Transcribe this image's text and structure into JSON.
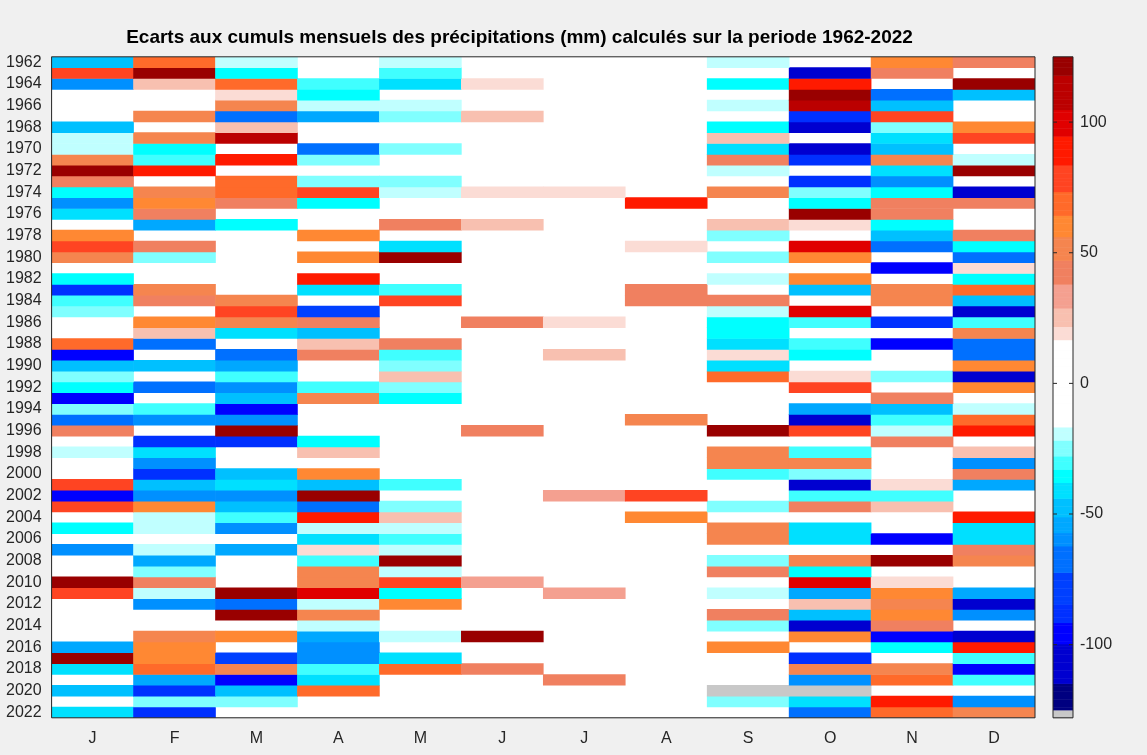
{
  "chart_data": {
    "type": "heatmap",
    "title": "Ecarts aux cumuls mensuels des précipitations (mm) calculés sur la periode 1962-2022",
    "categories": [
      "J",
      "F",
      "M",
      "A",
      "M",
      "J",
      "J",
      "A",
      "S",
      "O",
      "N",
      "D"
    ],
    "y_categories": [
      "1962",
      null,
      "1964",
      null,
      "1966",
      null,
      "1968",
      null,
      "1970",
      null,
      "1972",
      null,
      "1974",
      null,
      "1976",
      null,
      "1978",
      null,
      "1980",
      null,
      "1982",
      null,
      "1984",
      null,
      "1986",
      null,
      "1988",
      null,
      "1990",
      null,
      "1992",
      null,
      "1994",
      null,
      "1996",
      null,
      "1998",
      null,
      "2000",
      null,
      "2002",
      null,
      "2004",
      null,
      "2006",
      null,
      "2008",
      null,
      "2010",
      null,
      "2012",
      null,
      "2014",
      null,
      "2016",
      null,
      "2018",
      null,
      "2020",
      null,
      "2022"
    ],
    "clim": [
      -128,
      125
    ],
    "cticks": [
      -100,
      -50,
      0,
      50,
      100
    ],
    "cells": [
      [
        -48,
        65,
        -20,
        null,
        -20,
        null,
        null,
        null,
        -20,
        null,
        60,
        45
      ],
      [
        80,
        120,
        -37,
        null,
        -32,
        null,
        null,
        null,
        null,
        -105,
        45,
        null
      ],
      [
        -60,
        28,
        65,
        -32,
        -42,
        20,
        null,
        null,
        -37,
        95,
        null,
        120
      ],
      [
        null,
        null,
        20,
        -37,
        null,
        null,
        null,
        null,
        null,
        120,
        -68,
        -48
      ],
      [
        null,
        null,
        55,
        -20,
        -20,
        null,
        null,
        null,
        -20,
        110,
        -48,
        null
      ],
      [
        null,
        55,
        -68,
        -55,
        -27,
        28,
        null,
        null,
        null,
        -88,
        80,
        null
      ],
      [
        -48,
        null,
        28,
        null,
        null,
        null,
        null,
        null,
        -37,
        -108,
        -27,
        60
      ],
      [
        -20,
        55,
        110,
        null,
        null,
        null,
        null,
        null,
        28,
        null,
        -42,
        75
      ],
      [
        -20,
        -37,
        null,
        -68,
        -27,
        null,
        null,
        null,
        -42,
        -108,
        -48,
        null
      ],
      [
        55,
        -32,
        90,
        -27,
        null,
        null,
        null,
        null,
        45,
        -90,
        55,
        -20
      ],
      [
        120,
        95,
        null,
        null,
        null,
        null,
        null,
        null,
        -20,
        null,
        -42,
        120
      ],
      [
        45,
        null,
        65,
        -27,
        -27,
        null,
        null,
        null,
        null,
        -90,
        -60,
        null
      ],
      [
        -37,
        55,
        65,
        80,
        -20,
        20,
        20,
        null,
        55,
        -27,
        -37,
        -108
      ],
      [
        -60,
        58,
        45,
        -37,
        null,
        null,
        null,
        95,
        null,
        -37,
        45,
        45
      ],
      [
        -42,
        45,
        null,
        null,
        null,
        null,
        null,
        null,
        null,
        118,
        45,
        null
      ],
      [
        null,
        -55,
        -37,
        null,
        45,
        28,
        null,
        null,
        28,
        20,
        -37,
        null
      ],
      [
        62,
        null,
        null,
        58,
        null,
        null,
        null,
        null,
        -27,
        null,
        -48,
        38
      ],
      [
        75,
        45,
        null,
        null,
        -42,
        null,
        null,
        20,
        null,
        100,
        -68,
        -37
      ],
      [
        48,
        -27,
        null,
        58,
        120,
        null,
        null,
        null,
        -27,
        58,
        null,
        -68
      ],
      [
        null,
        null,
        null,
        null,
        null,
        null,
        null,
        null,
        null,
        null,
        -98,
        20
      ],
      [
        -37,
        null,
        null,
        90,
        null,
        null,
        null,
        null,
        -20,
        58,
        null,
        -37
      ],
      [
        -88,
        52,
        null,
        -42,
        -32,
        null,
        null,
        45,
        null,
        -48,
        50,
        68
      ],
      [
        -32,
        45,
        50,
        null,
        80,
        null,
        null,
        38,
        38,
        null,
        50,
        -48
      ],
      [
        -27,
        null,
        78,
        -78,
        null,
        null,
        null,
        null,
        -20,
        100,
        null,
        -100
      ],
      [
        null,
        58,
        52,
        38,
        null,
        45,
        20,
        null,
        -37,
        -32,
        -88,
        -32
      ],
      [
        null,
        28,
        -42,
        -48,
        null,
        null,
        null,
        null,
        -37,
        null,
        null,
        48
      ],
      [
        72,
        -68,
        null,
        28,
        45,
        null,
        null,
        null,
        -42,
        -32,
        -92,
        -68
      ],
      [
        -92,
        null,
        -68,
        45,
        -32,
        null,
        28,
        null,
        20,
        -37,
        null,
        -68
      ],
      [
        -48,
        -48,
        -55,
        null,
        -27,
        null,
        null,
        null,
        -42,
        null,
        null,
        58
      ],
      [
        -27,
        null,
        -32,
        null,
        28,
        null,
        null,
        null,
        72,
        20,
        -27,
        -105
      ],
      [
        -37,
        -68,
        -62,
        -32,
        -27,
        null,
        null,
        null,
        null,
        82,
        null,
        58
      ],
      [
        -92,
        null,
        -48,
        52,
        -37,
        null,
        null,
        null,
        null,
        null,
        38,
        null
      ],
      [
        -27,
        -32,
        -98,
        null,
        null,
        null,
        null,
        null,
        null,
        -55,
        -48,
        -20
      ],
      [
        -68,
        -62,
        -62,
        null,
        null,
        null,
        null,
        52,
        null,
        -108,
        -32,
        72
      ],
      [
        45,
        null,
        120,
        null,
        null,
        45,
        null,
        null,
        120,
        82,
        -20,
        95
      ],
      [
        null,
        -88,
        -88,
        -37,
        null,
        null,
        null,
        null,
        null,
        null,
        45,
        null
      ],
      [
        -20,
        -42,
        null,
        28,
        null,
        null,
        null,
        null,
        55,
        -32,
        null,
        28
      ],
      [
        null,
        -60,
        null,
        null,
        null,
        null,
        null,
        null,
        48,
        52,
        null,
        -60
      ],
      [
        null,
        -85,
        -48,
        58,
        null,
        null,
        null,
        null,
        -32,
        -27,
        null,
        38
      ],
      [
        75,
        -48,
        -42,
        -48,
        -32,
        null,
        null,
        null,
        null,
        -108,
        20,
        -55
      ],
      [
        -92,
        -60,
        -60,
        120,
        null,
        null,
        35,
        82,
        null,
        -32,
        -32,
        null
      ],
      [
        78,
        62,
        -48,
        -68,
        -27,
        null,
        null,
        null,
        -27,
        45,
        28,
        null
      ],
      [
        null,
        -20,
        -32,
        92,
        28,
        null,
        null,
        58,
        null,
        null,
        null,
        85
      ],
      [
        -37,
        -20,
        -62,
        -20,
        -20,
        null,
        null,
        null,
        52,
        -42,
        null,
        -42
      ],
      [
        null,
        null,
        null,
        -42,
        -32,
        null,
        null,
        null,
        52,
        -42,
        -98,
        -42
      ],
      [
        -60,
        -20,
        -55,
        20,
        -20,
        null,
        null,
        null,
        null,
        null,
        null,
        45
      ],
      [
        null,
        -55,
        null,
        -32,
        120,
        null,
        null,
        null,
        -27,
        50,
        120,
        50
      ],
      [
        null,
        -27,
        null,
        52,
        -20,
        null,
        null,
        null,
        45,
        -37,
        null,
        null
      ],
      [
        120,
        45,
        null,
        52,
        80,
        35,
        null,
        null,
        null,
        100,
        20,
        null
      ],
      [
        75,
        -20,
        118,
        105,
        -37,
        null,
        35,
        null,
        -20,
        -55,
        58,
        -55
      ],
      [
        null,
        -62,
        -68,
        -20,
        60,
        null,
        null,
        null,
        null,
        28,
        48,
        -100
      ],
      [
        null,
        null,
        120,
        50,
        null,
        null,
        null,
        null,
        45,
        -48,
        58,
        -60
      ],
      [
        null,
        null,
        null,
        -20,
        null,
        null,
        null,
        null,
        -27,
        -108,
        45,
        null
      ],
      [
        null,
        48,
        58,
        -55,
        -20,
        120,
        null,
        null,
        null,
        58,
        -98,
        -108
      ],
      [
        -55,
        58,
        null,
        -60,
        null,
        null,
        null,
        null,
        58,
        null,
        -37,
        95
      ],
      [
        120,
        58,
        -78,
        -60,
        -42,
        null,
        null,
        null,
        null,
        -85,
        null,
        -32
      ],
      [
        -42,
        68,
        48,
        -32,
        68,
        38,
        null,
        null,
        null,
        48,
        48,
        -92
      ],
      [
        null,
        -55,
        -98,
        -42,
        null,
        null,
        38,
        null,
        null,
        -60,
        68,
        -32
      ],
      [
        -48,
        -85,
        -48,
        65,
        null,
        null,
        null,
        null,
        -127,
        -127,
        null,
        null
      ],
      [
        null,
        -27,
        -27,
        null,
        null,
        null,
        null,
        null,
        -27,
        -42,
        85,
        -60
      ],
      [
        -42,
        -85,
        null,
        null,
        null,
        null,
        null,
        null,
        null,
        -68,
        70,
        48
      ]
    ]
  }
}
